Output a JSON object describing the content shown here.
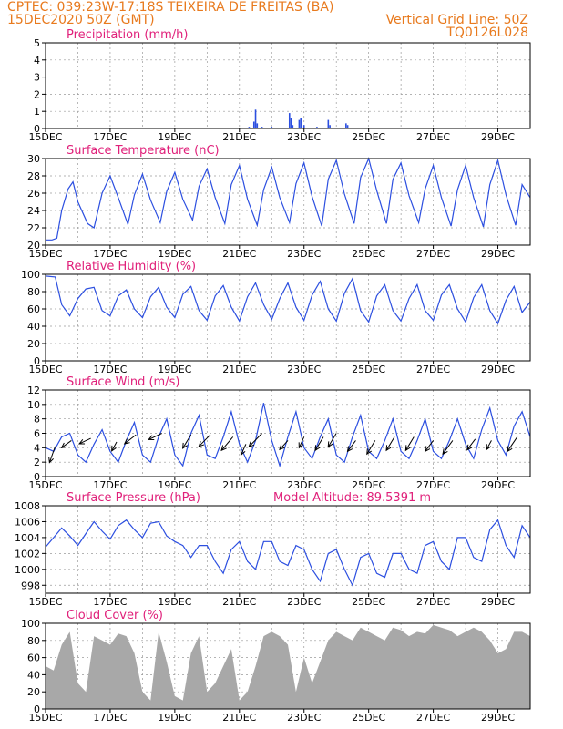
{
  "header": {
    "line1": "CPTEC:   039:23W-17:18S   TEIXEIRA DE FREITAS (BA)",
    "line2_left": "15DEC2020 50Z (GMT)",
    "line2_right": "Vertical Grid Line: 50Z",
    "line3_right": "TQ0126L028"
  },
  "x_tick_labels": [
    "15DEC",
    "17DEC",
    "19DEC",
    "21DEC",
    "23DEC",
    "25DEC",
    "27DEC",
    "29DEC"
  ],
  "colors": {
    "header": "#e87a1e",
    "panel_title": "#e0207a",
    "series": "#2c4fe0",
    "cloud": "#a8a8a8"
  },
  "chart_data": [
    {
      "type": "bar",
      "title": "Precipitation (mm/h)",
      "ylim": [
        0,
        5
      ],
      "yticks": [
        0,
        1,
        2,
        3,
        4,
        5
      ],
      "x_range_days": [
        15,
        30
      ],
      "color": "#2c4fe0",
      "x": [
        15.0,
        15.5,
        16.0,
        16.5,
        17.0,
        17.5,
        18.0,
        18.5,
        19.0,
        19.5,
        20.0,
        20.5,
        21.0,
        21.3,
        21.45,
        21.5,
        21.55,
        21.7,
        22.0,
        22.2,
        22.55,
        22.6,
        22.65,
        22.85,
        22.9,
        23.0,
        23.2,
        23.4,
        23.75,
        23.8,
        24.0,
        24.3,
        24.35,
        24.6,
        25.0,
        25.5,
        26.0,
        26.5,
        27.0,
        27.5,
        28.0,
        28.5,
        29.0,
        29.5,
        30.0
      ],
      "values": [
        0.05,
        0.05,
        0.05,
        0.05,
        0.05,
        0.05,
        0.05,
        0.05,
        0.05,
        0.05,
        0.05,
        0.05,
        0.05,
        0.1,
        0.4,
        1.1,
        0.3,
        0.1,
        0.1,
        0.05,
        0.9,
        0.6,
        0.2,
        0.5,
        0.6,
        0.2,
        0.05,
        0.1,
        0.5,
        0.2,
        0.05,
        0.3,
        0.2,
        0.05,
        0.05,
        0.05,
        0.05,
        0.05,
        0.05,
        0.05,
        0.05,
        0.05,
        0.05,
        0.05,
        0.05
      ]
    },
    {
      "type": "line",
      "title": "Surface Temperature (nC)",
      "ylim": [
        20,
        30
      ],
      "yticks": [
        20,
        22,
        24,
        26,
        28,
        30
      ],
      "x_range_days": [
        15,
        30
      ],
      "x": [
        15.0,
        15.2,
        15.35,
        15.5,
        15.7,
        15.85,
        16.0,
        16.3,
        16.5,
        16.75,
        17.0,
        17.25,
        17.55,
        17.75,
        18.0,
        18.25,
        18.55,
        18.75,
        19.0,
        19.25,
        19.55,
        19.75,
        20.0,
        20.25,
        20.55,
        20.75,
        21.0,
        21.25,
        21.55,
        21.75,
        22.0,
        22.25,
        22.55,
        22.75,
        23.0,
        23.25,
        23.55,
        23.75,
        24.0,
        24.25,
        24.55,
        24.75,
        25.0,
        25.25,
        25.55,
        25.75,
        26.0,
        26.25,
        26.55,
        26.75,
        27.0,
        27.25,
        27.55,
        27.75,
        28.0,
        28.25,
        28.55,
        28.75,
        29.0,
        29.25,
        29.55,
        29.75,
        30.0
      ],
      "values": [
        20.6,
        20.6,
        20.8,
        24.0,
        26.5,
        27.3,
        25.0,
        22.5,
        22.0,
        26.0,
        28.0,
        25.5,
        22.4,
        25.8,
        28.2,
        25.2,
        22.6,
        26.2,
        28.4,
        25.3,
        22.9,
        26.8,
        28.8,
        25.5,
        22.5,
        27.0,
        29.2,
        25.3,
        22.3,
        26.4,
        29.0,
        25.5,
        22.6,
        27.1,
        29.5,
        25.6,
        22.2,
        27.6,
        29.8,
        25.9,
        22.5,
        27.8,
        30.0,
        26.3,
        22.5,
        27.6,
        29.5,
        25.7,
        22.6,
        26.5,
        29.2,
        25.5,
        22.2,
        26.4,
        29.2,
        25.5,
        22.1,
        27.0,
        29.8,
        25.8,
        22.3,
        27.0,
        25.5
      ]
    },
    {
      "type": "line",
      "title": "Relative Humidity (%)",
      "ylim": [
        0,
        100
      ],
      "yticks": [
        0,
        20,
        40,
        60,
        80,
        100
      ],
      "x_range_days": [
        15,
        30
      ],
      "x": [
        15.0,
        15.3,
        15.5,
        15.75,
        16.0,
        16.25,
        16.5,
        16.75,
        17.0,
        17.25,
        17.5,
        17.75,
        18.0,
        18.25,
        18.5,
        18.75,
        19.0,
        19.25,
        19.5,
        19.75,
        20.0,
        20.25,
        20.5,
        20.75,
        21.0,
        21.25,
        21.5,
        21.75,
        22.0,
        22.25,
        22.5,
        22.75,
        23.0,
        23.25,
        23.5,
        23.75,
        24.0,
        24.25,
        24.5,
        24.75,
        25.0,
        25.25,
        25.5,
        25.75,
        26.0,
        26.25,
        26.5,
        26.75,
        27.0,
        27.25,
        27.5,
        27.75,
        28.0,
        28.25,
        28.5,
        28.75,
        29.0,
        29.25,
        29.5,
        29.75,
        30.0
      ],
      "values": [
        98,
        97,
        65,
        52,
        72,
        83,
        85,
        58,
        52,
        75,
        82,
        60,
        50,
        74,
        85,
        62,
        50,
        77,
        86,
        58,
        47,
        75,
        87,
        62,
        46,
        74,
        90,
        65,
        48,
        72,
        90,
        62,
        47,
        76,
        92,
        60,
        46,
        78,
        95,
        58,
        45,
        75,
        88,
        58,
        46,
        72,
        88,
        58,
        47,
        76,
        88,
        60,
        45,
        73,
        88,
        58,
        43,
        70,
        86,
        56,
        68
      ]
    },
    {
      "type": "line",
      "title": "Surface Wind (m/s)",
      "ylim": [
        0,
        12
      ],
      "yticks": [
        0,
        2,
        4,
        6,
        8,
        10,
        12
      ],
      "x_range_days": [
        15,
        30
      ],
      "x": [
        15.0,
        15.25,
        15.5,
        15.75,
        16.0,
        16.25,
        16.5,
        16.75,
        17.0,
        17.25,
        17.5,
        17.75,
        18.0,
        18.25,
        18.5,
        18.75,
        19.0,
        19.25,
        19.5,
        19.75,
        20.0,
        20.25,
        20.5,
        20.75,
        21.0,
        21.25,
        21.5,
        21.75,
        22.0,
        22.25,
        22.5,
        22.75,
        23.0,
        23.25,
        23.5,
        23.75,
        24.0,
        24.25,
        24.5,
        24.75,
        25.0,
        25.25,
        25.5,
        25.75,
        26.0,
        26.25,
        26.5,
        26.75,
        27.0,
        27.25,
        27.5,
        27.75,
        28.0,
        28.25,
        28.5,
        28.75,
        29.0,
        29.25,
        29.5,
        29.75,
        30.0
      ],
      "values": [
        4.0,
        3.5,
        5.5,
        6.0,
        3.0,
        2.0,
        4.5,
        6.5,
        3.5,
        2.0,
        5.0,
        7.5,
        3.0,
        2.0,
        5.5,
        8.0,
        3.0,
        1.5,
        6.0,
        8.5,
        3.0,
        2.5,
        5.5,
        9.0,
        4.5,
        2.0,
        5.0,
        10.2,
        5.0,
        1.5,
        5.5,
        9.0,
        4.0,
        2.5,
        5.5,
        8.0,
        3.0,
        2.0,
        5.5,
        8.5,
        3.5,
        2.5,
        5.0,
        8.0,
        3.5,
        2.5,
        5.0,
        8.0,
        3.5,
        2.5,
        5.0,
        8.0,
        4.5,
        2.5,
        6.5,
        9.5,
        5.0,
        3.0,
        7.0,
        9.0,
        5.5
      ],
      "vectors_note": "black wind-direction arrows overlaid, pointing toward lower-left",
      "vectors": [
        {
          "x": 15.3,
          "y": 4.2,
          "dx": -0.35,
          "dy": -1.8
        },
        {
          "x": 15.8,
          "y": 5.0,
          "dx": -0.6,
          "dy": -0.8
        },
        {
          "x": 16.4,
          "y": 5.3,
          "dx": -0.7,
          "dy": -0.6
        },
        {
          "x": 17.2,
          "y": 4.8,
          "dx": -0.3,
          "dy": -1.0
        },
        {
          "x": 17.8,
          "y": 5.8,
          "dx": -0.7,
          "dy": -1.0
        },
        {
          "x": 18.6,
          "y": 6.0,
          "dx": -0.8,
          "dy": -0.7
        },
        {
          "x": 19.5,
          "y": 5.8,
          "dx": -0.5,
          "dy": -1.5
        },
        {
          "x": 20.1,
          "y": 5.8,
          "dx": -0.7,
          "dy": -1.3
        },
        {
          "x": 20.8,
          "y": 5.5,
          "dx": -0.7,
          "dy": -1.5
        },
        {
          "x": 21.2,
          "y": 4.5,
          "dx": -0.3,
          "dy": -1.2
        },
        {
          "x": 21.7,
          "y": 6.0,
          "dx": -0.8,
          "dy": -1.5
        },
        {
          "x": 22.5,
          "y": 5.0,
          "dx": -0.5,
          "dy": -1.0
        },
        {
          "x": 23.0,
          "y": 5.5,
          "dx": -0.3,
          "dy": -1.2
        },
        {
          "x": 23.6,
          "y": 5.5,
          "dx": -0.5,
          "dy": -1.5
        },
        {
          "x": 24.0,
          "y": 6.0,
          "dx": -0.5,
          "dy": -1.5
        },
        {
          "x": 24.6,
          "y": 5.0,
          "dx": -0.5,
          "dy": -1.2
        },
        {
          "x": 25.2,
          "y": 5.0,
          "dx": -0.5,
          "dy": -1.5
        },
        {
          "x": 25.8,
          "y": 5.5,
          "dx": -0.5,
          "dy": -1.5
        },
        {
          "x": 26.4,
          "y": 5.5,
          "dx": -0.5,
          "dy": -1.5
        },
        {
          "x": 27.0,
          "y": 5.0,
          "dx": -0.5,
          "dy": -1.2
        },
        {
          "x": 27.6,
          "y": 5.0,
          "dx": -0.6,
          "dy": -1.5
        },
        {
          "x": 28.3,
          "y": 5.2,
          "dx": -0.5,
          "dy": -1.2
        },
        {
          "x": 28.8,
          "y": 5.0,
          "dx": -0.3,
          "dy": -1.0
        },
        {
          "x": 29.6,
          "y": 5.5,
          "dx": -0.6,
          "dy": -1.6
        }
      ]
    },
    {
      "type": "line",
      "title": "Surface Pressure (hPa)",
      "annotation": "Model Altitude: 89.5391  m",
      "ylim": [
        997,
        1008
      ],
      "yticks": [
        998,
        1000,
        1002,
        1004,
        1006,
        1008
      ],
      "x_range_days": [
        15,
        30
      ],
      "x": [
        15.0,
        15.25,
        15.5,
        15.75,
        16.0,
        16.25,
        16.5,
        16.75,
        17.0,
        17.25,
        17.5,
        17.75,
        18.0,
        18.25,
        18.5,
        18.75,
        19.0,
        19.25,
        19.5,
        19.75,
        20.0,
        20.25,
        20.5,
        20.75,
        21.0,
        21.25,
        21.5,
        21.75,
        22.0,
        22.25,
        22.5,
        22.75,
        23.0,
        23.25,
        23.5,
        23.75,
        24.0,
        24.25,
        24.5,
        24.75,
        25.0,
        25.25,
        25.5,
        25.75,
        26.0,
        26.25,
        26.5,
        26.75,
        27.0,
        27.25,
        27.5,
        27.75,
        28.0,
        28.25,
        28.5,
        28.75,
        29.0,
        29.25,
        29.5,
        29.75,
        30.0
      ],
      "values": [
        1002.8,
        1004.0,
        1005.2,
        1004.2,
        1003.0,
        1004.5,
        1006.0,
        1004.8,
        1003.8,
        1005.5,
        1006.2,
        1005.0,
        1004.0,
        1005.8,
        1006.0,
        1004.2,
        1003.5,
        1003.0,
        1001.5,
        1003.0,
        1003.0,
        1001.0,
        999.5,
        1002.5,
        1003.5,
        1001.0,
        1000.0,
        1003.5,
        1003.5,
        1001.0,
        1000.5,
        1003.0,
        1002.5,
        1000.0,
        998.5,
        1002.0,
        1002.5,
        1000.0,
        998.0,
        1001.5,
        1002.0,
        999.5,
        999.0,
        1002.0,
        1002.0,
        1000.0,
        999.5,
        1003.0,
        1003.5,
        1001.0,
        1000.0,
        1004.0,
        1004.0,
        1001.5,
        1001.0,
        1005.0,
        1006.2,
        1003.0,
        1001.5,
        1005.5,
        1004.0
      ]
    },
    {
      "type": "area",
      "title": "Cloud Cover (%)",
      "ylim": [
        0,
        100
      ],
      "yticks": [
        0,
        20,
        40,
        60,
        80,
        100
      ],
      "x_range_days": [
        15,
        30
      ],
      "color": "#a8a8a8",
      "x": [
        15.0,
        15.25,
        15.5,
        15.75,
        16.0,
        16.25,
        16.5,
        16.75,
        17.0,
        17.25,
        17.5,
        17.75,
        18.0,
        18.25,
        18.5,
        18.75,
        19.0,
        19.25,
        19.5,
        19.75,
        20.0,
        20.25,
        20.5,
        20.75,
        21.0,
        21.25,
        21.5,
        21.75,
        22.0,
        22.25,
        22.5,
        22.75,
        23.0,
        23.25,
        23.5,
        23.75,
        24.0,
        24.25,
        24.5,
        24.75,
        25.0,
        25.25,
        25.5,
        25.75,
        26.0,
        26.25,
        26.5,
        26.75,
        27.0,
        27.25,
        27.5,
        27.75,
        28.0,
        28.25,
        28.5,
        28.75,
        29.0,
        29.25,
        29.5,
        29.75,
        30.0
      ],
      "values": [
        50,
        45,
        75,
        90,
        30,
        20,
        85,
        80,
        75,
        88,
        85,
        65,
        20,
        10,
        90,
        55,
        15,
        10,
        65,
        85,
        20,
        30,
        50,
        70,
        10,
        20,
        50,
        85,
        90,
        85,
        75,
        20,
        60,
        30,
        55,
        80,
        90,
        85,
        80,
        95,
        90,
        85,
        80,
        95,
        92,
        85,
        90,
        88,
        98,
        95,
        92,
        85,
        90,
        95,
        90,
        80,
        65,
        70,
        90,
        90,
        85
      ]
    }
  ]
}
